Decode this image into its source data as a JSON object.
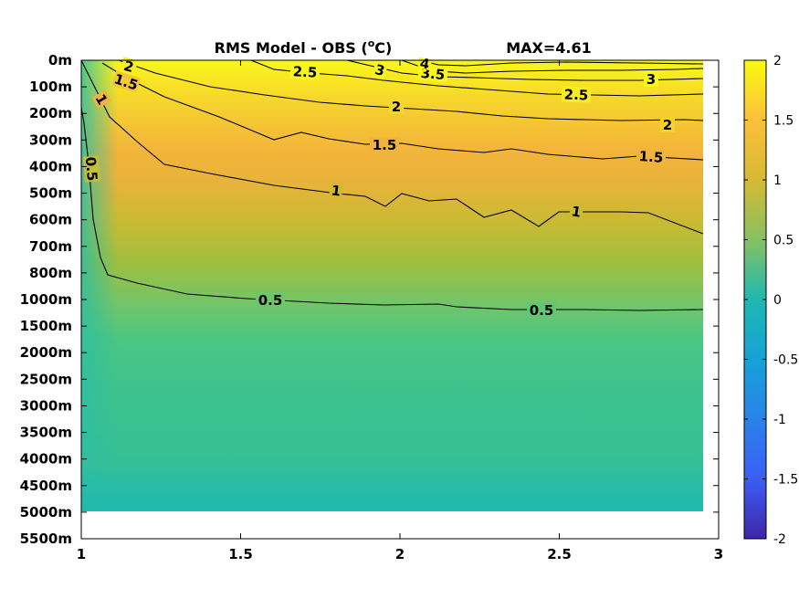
{
  "title": "RMS Model - OBS (",
  "title_unit_sup": "o",
  "title_unit_end": "C)",
  "max_label": "MAX=4.61",
  "chart_data": {
    "type": "heatmap",
    "title": "RMS Model - OBS (°C)",
    "annotation": "MAX=4.61",
    "colormap": "parula",
    "x_ticks": [
      "1",
      "1.5",
      "2",
      "2.5",
      "3"
    ],
    "xlim": [
      1,
      3
    ],
    "data_xlim": [
      1,
      2.95
    ],
    "y_ticks": [
      "0m",
      "100m",
      "200m",
      "300m",
      "400m",
      "500m",
      "600m",
      "700m",
      "800m",
      "1000m",
      "1500m",
      "2000m",
      "2500m",
      "3000m",
      "3500m",
      "4000m",
      "4500m",
      "5000m",
      "5500m"
    ],
    "data_depth_range": [
      "0m",
      "5000m"
    ],
    "colorbar": {
      "range": [
        -2,
        2
      ],
      "ticks": [
        "2",
        "1.5",
        "1",
        "0.5",
        "0",
        "-0.5",
        "-1",
        "-1.5",
        "-2"
      ]
    },
    "contour_levels": [
      0.5,
      1,
      1.5,
      2,
      2.5,
      3,
      3.5,
      4
    ],
    "contour_labels": [
      "2",
      "1.5",
      "1",
      "0.5",
      "2.5",
      "3",
      "3.5",
      "4",
      "2",
      "1.5",
      "1",
      "0.5",
      "2.5",
      "2",
      "1.5",
      "1",
      "0.5",
      "3"
    ],
    "value_by_depth": {
      "0m": 2.0,
      "100m": 1.8,
      "200m": 1.55,
      "300m": 1.35,
      "400m": 1.2,
      "500m": 1.05,
      "600m": 0.95,
      "700m": 0.85,
      "800m": 0.75,
      "1000m": 0.55,
      "1500m": 0.4,
      "2000m": 0.35,
      "2500m": 0.35,
      "3000m": 0.3,
      "3500m": 0.3,
      "4000m": 0.28,
      "4500m": 0.25,
      "5000m": 0.2
    },
    "grid": false
  },
  "colors": {
    "background": "#ffffff",
    "nodata": "#ffffff",
    "contour": "#000000"
  }
}
